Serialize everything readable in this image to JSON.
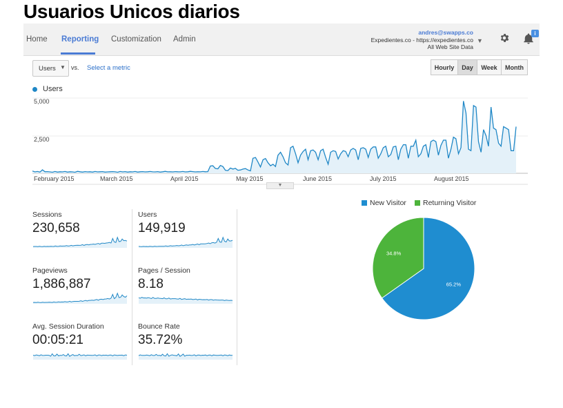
{
  "slide_title": "Usuarios Unicos diarios",
  "nav": {
    "items": [
      "Home",
      "Reporting",
      "Customization",
      "Admin"
    ],
    "active": "Reporting"
  },
  "account": {
    "email": "andres@swapps.co",
    "property": "Expedientes.co - https://expedientes.co",
    "view": "All Web Site Data"
  },
  "icons": [
    "chevron-down-icon",
    "gear-icon",
    "bell-icon"
  ],
  "notification_badge": "i",
  "controls": {
    "metric_dropdown": "Users",
    "vs_label": "vs.",
    "select_metric": "Select a metric",
    "granularity": [
      "Hourly",
      "Day",
      "Week",
      "Month"
    ],
    "granularity_active": "Day"
  },
  "chart_data": [
    {
      "type": "area",
      "series": [
        {
          "name": "Users",
          "color": "#1f87c6"
        }
      ],
      "x_labels": [
        "February 2015",
        "March 2015",
        "April 2015",
        "May 2015",
        "June 2015",
        "July 2015",
        "August 2015"
      ],
      "y_ticks": [
        "5,000",
        "2,500"
      ],
      "ylim": [
        0,
        5000
      ],
      "values": [
        150,
        90,
        120,
        80,
        230,
        100,
        110,
        90,
        70,
        120,
        80,
        100,
        90,
        120,
        80,
        100,
        90,
        70,
        130,
        100,
        80,
        110,
        90,
        100,
        80,
        120,
        90,
        100,
        110,
        80,
        90,
        100,
        110,
        95,
        70,
        120,
        90,
        110,
        80,
        100,
        90,
        120,
        80,
        100,
        110,
        90,
        100,
        120,
        95,
        90,
        110,
        80,
        100,
        130,
        95,
        100,
        90,
        110,
        100,
        95,
        120,
        90,
        100,
        130,
        110,
        90,
        100,
        95,
        120,
        100,
        110,
        480,
        500,
        320,
        300,
        520,
        450,
        200,
        180,
        350,
        280,
        330,
        200,
        220,
        280,
        310,
        220,
        160,
        1000,
        1050,
        750,
        420,
        900,
        980,
        700,
        500,
        600,
        450,
        1200,
        1400,
        1100,
        700,
        550,
        1700,
        1800,
        1300,
        700,
        1200,
        1450,
        1600,
        900,
        1500,
        1550,
        1400,
        900,
        1500,
        1600,
        1050,
        600,
        1400,
        1500,
        1450,
        950,
        1300,
        1500,
        1450,
        1100,
        1550,
        1650,
        1550,
        900,
        1650,
        1700,
        1600,
        1050,
        1600,
        1750,
        1750,
        1000,
        1300,
        1700,
        1800,
        1100,
        1250,
        1750,
        1800,
        900,
        1600,
        1900,
        1900,
        1000,
        1800,
        1800,
        2200,
        1100,
        1300,
        1800,
        1900,
        1050,
        2100,
        2200,
        2100,
        1200,
        1850,
        2200,
        2200,
        1000,
        1600,
        2400,
        2300,
        1300,
        1700,
        4800,
        4000,
        1600,
        1500,
        4500,
        4400,
        2100,
        1400,
        2900,
        2500,
        1800,
        4400,
        3000,
        2900,
        2000,
        1800,
        3100,
        3000,
        2900,
        1500,
        1500,
        3100
      ]
    },
    {
      "type": "pie",
      "labels": [
        "New Visitor",
        "Returning Visitor"
      ],
      "values": [
        65.2,
        34.8
      ],
      "slice_labels": [
        "65.2%",
        "34.8%"
      ],
      "colors": [
        "#1f8dd0",
        "#4db43b"
      ]
    }
  ],
  "metrics": [
    {
      "label": "Sessions",
      "value": "230,658",
      "trend": "growth"
    },
    {
      "label": "Users",
      "value": "149,919",
      "trend": "growth"
    },
    {
      "label": "Pageviews",
      "value": "1,886,887",
      "trend": "growth"
    },
    {
      "label": "Pages / Session",
      "value": "8.18",
      "trend": "decline"
    },
    {
      "label": "Avg. Session Duration",
      "value": "00:05:21",
      "trend": "flat"
    },
    {
      "label": "Bounce Rate",
      "value": "35.72%",
      "trend": "flat"
    }
  ]
}
